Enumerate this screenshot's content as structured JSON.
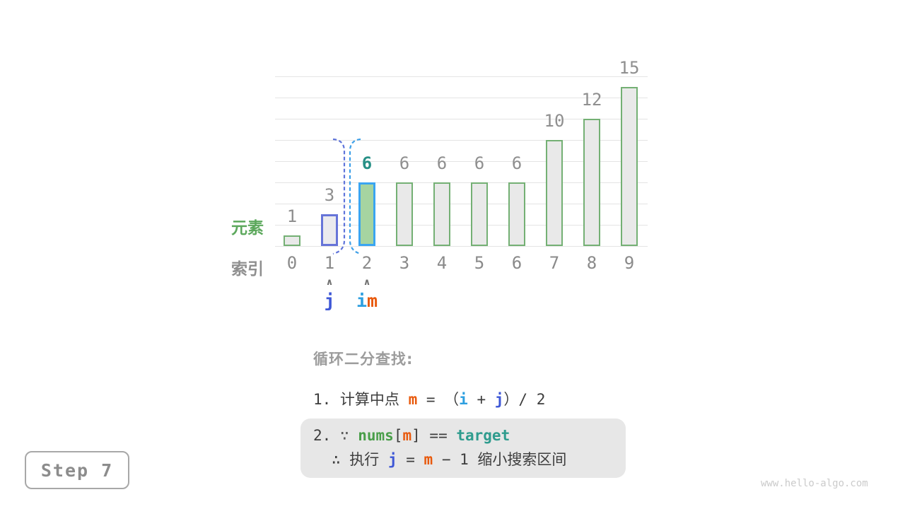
{
  "watermark": "www.hello-algo.com",
  "step_badge": {
    "label": "Step 7"
  },
  "chart_data": {
    "type": "bar",
    "title": "",
    "categories": [
      "0",
      "1",
      "2",
      "3",
      "4",
      "5",
      "6",
      "7",
      "8",
      "9"
    ],
    "values": [
      1,
      3,
      6,
      6,
      6,
      6,
      6,
      10,
      12,
      15
    ],
    "xlabel": "索引",
    "ylabel": "元素",
    "ylim": [
      0,
      16
    ],
    "grid": true,
    "annotations": [
      "j at index 1",
      "i and m at index 2",
      "dashed interval divider between index 1 and 2"
    ]
  },
  "chart": {
    "element_label": "元素",
    "index_label": "索引",
    "bars": [
      {
        "index": 0,
        "value": 1,
        "style": "default"
      },
      {
        "index": 1,
        "value": 3,
        "style": "j"
      },
      {
        "index": 2,
        "value": 6,
        "style": "m"
      },
      {
        "index": 3,
        "value": 6,
        "style": "default"
      },
      {
        "index": 4,
        "value": 6,
        "style": "default"
      },
      {
        "index": 5,
        "value": 6,
        "style": "default"
      },
      {
        "index": 6,
        "value": 6,
        "style": "default"
      },
      {
        "index": 7,
        "value": 10,
        "style": "default"
      },
      {
        "index": 8,
        "value": 12,
        "style": "default"
      },
      {
        "index": 9,
        "value": 15,
        "style": "default"
      }
    ],
    "indices": [
      "0",
      "1",
      "2",
      "3",
      "4",
      "5",
      "6",
      "7",
      "8",
      "9"
    ],
    "pointers": [
      {
        "index": 1,
        "caret": "∧",
        "labels": [
          {
            "t": "j",
            "c": "j"
          }
        ]
      },
      {
        "index": 2,
        "caret": "∧",
        "labels": [
          {
            "t": "i",
            "c": "i"
          },
          {
            "t": "m",
            "c": "m"
          }
        ]
      }
    ],
    "bracket": {
      "between_indices": [
        1,
        2
      ]
    }
  },
  "caption": {
    "title": "循环二分查找:",
    "line1": [
      {
        "t": "1. 计算中点 ",
        "c": "text"
      },
      {
        "t": "m",
        "c": "m",
        "b": true
      },
      {
        "t": " = （",
        "c": "text"
      },
      {
        "t": "i",
        "c": "i",
        "b": true
      },
      {
        "t": " + ",
        "c": "text"
      },
      {
        "t": "j",
        "c": "j",
        "b": true
      },
      {
        "t": "）/ 2",
        "c": "text"
      }
    ],
    "box_line1": [
      {
        "t": "2. ",
        "c": "text"
      },
      {
        "t": "∵ ",
        "c": "because"
      },
      {
        "t": "nums",
        "c": "nums",
        "b": true
      },
      {
        "t": "[",
        "c": "text"
      },
      {
        "t": "m",
        "c": "m",
        "b": true
      },
      {
        "t": "]",
        "c": "text"
      },
      {
        "t": " == ",
        "c": "text"
      },
      {
        "t": "target",
        "c": "target",
        "b": true
      }
    ],
    "box_line2": [
      {
        "t": "∴ 执行 ",
        "c": "text"
      },
      {
        "t": "j",
        "c": "j",
        "b": true
      },
      {
        "t": " = ",
        "c": "text"
      },
      {
        "t": "m",
        "c": "m",
        "b": true
      },
      {
        "t": " − 1 缩小搜索区间",
        "c": "text"
      }
    ]
  },
  "colors": {
    "text": "#3d3d3d",
    "because": "#5a5a5a",
    "muted": "#8f8f8f",
    "i": "#2d9fe0",
    "j": "#3e57d6",
    "m": "#e8590c",
    "nums": "#4a9e4a",
    "target": "#2f9c8e",
    "teal_value": "#279086",
    "bar_fill": "#e9e9e9",
    "bar_border": "#74b074",
    "j_bar_border": "#6674d8",
    "m_bar_border": "#3aa5f1",
    "m_bar_fill": "#a6d4a1",
    "bracket_left": "#5f74da",
    "bracket_right": "#3fa0e8",
    "grid": "#e4e4e4",
    "box_bg": "#e7e7e7",
    "title_gray": "#9c9c9c",
    "watermark": "#cbcbcb"
  }
}
